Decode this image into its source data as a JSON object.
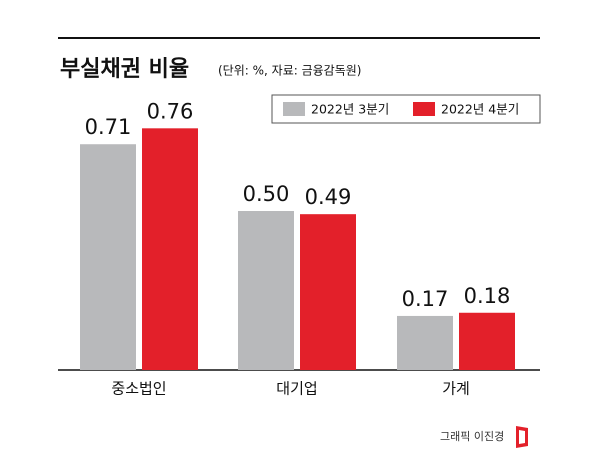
{
  "chart_data": {
    "type": "bar",
    "title": "부실채권 비율",
    "subtitle": "(단위: %, 자료: 금융감독원)",
    "categories": [
      "중소법인",
      "대기업",
      "가계"
    ],
    "series": [
      {
        "name": "2022년 3분기",
        "color": "#b8b9bb",
        "values": [
          0.71,
          0.5,
          0.17
        ],
        "value_labels": [
          "0.71",
          "0.50",
          "0.17"
        ]
      },
      {
        "name": "2022년 4분기",
        "color": "#e3202a",
        "values": [
          0.76,
          0.49,
          0.18
        ],
        "value_labels": [
          "0.76",
          "0.49",
          "0.18"
        ]
      }
    ],
    "credit": "그래픽 이진경"
  }
}
